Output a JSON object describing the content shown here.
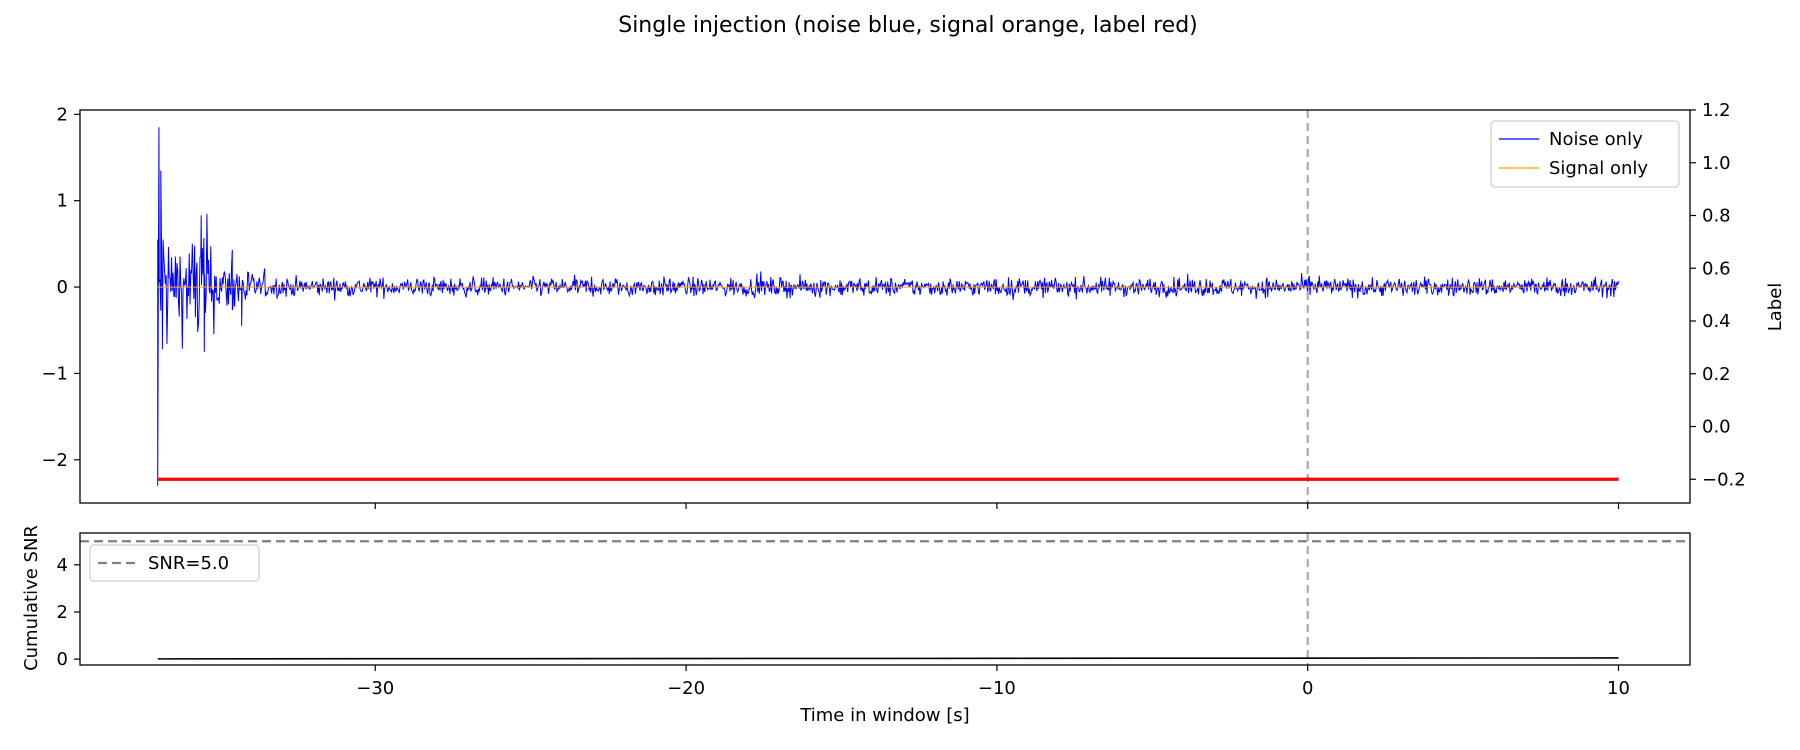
{
  "figure": {
    "title": "Single injection (noise blue, signal orange, label red)"
  },
  "chart_data": [
    {
      "type": "line",
      "panel": "top",
      "title": "",
      "xlabel": "",
      "ylabel": "",
      "y2label": "Label",
      "xlim": [
        -39.5,
        12.3
      ],
      "ylim": [
        -2.5,
        2.05
      ],
      "y2lim": [
        -0.29,
        1.2
      ],
      "x_ticks": [
        -30,
        -20,
        -10,
        0,
        10
      ],
      "y_ticks": [
        -2,
        -1,
        0,
        1,
        2
      ],
      "y_tick_labels": [
        "−2",
        "−1",
        "0",
        "1",
        "2"
      ],
      "y2_ticks": [
        -0.2,
        0.0,
        0.2,
        0.4,
        0.6,
        0.8,
        1.0,
        1.2
      ],
      "y2_tick_labels": [
        "−0.2",
        "0.0",
        "0.2",
        "0.4",
        "0.6",
        "0.8",
        "1.0",
        "1.2"
      ],
      "grid": false,
      "legend": {
        "placement": "top-right"
      },
      "vline_x": 0,
      "series": [
        {
          "name": "Noise only",
          "color": "#0000ff",
          "kind": "noisy-trace",
          "x_start": -37.0,
          "x_end": 10.0,
          "n_points": 1900,
          "peak_points": [
            [
              -37.0,
              -2.3
            ],
            [
              -36.96,
              1.85
            ],
            [
              -36.9,
              1.35
            ],
            [
              -36.85,
              -0.72
            ],
            [
              -35.6,
              0.83
            ],
            [
              -35.5,
              -0.75
            ],
            [
              -34.6,
              0.43
            ],
            [
              -34.3,
              -0.45
            ]
          ],
          "steady_amplitude": 0.07
        },
        {
          "name": "Signal only",
          "color": "#ffa500",
          "kind": "flat",
          "x_start": -37.0,
          "x_end": 10.0,
          "y": 0.0
        },
        {
          "name": "",
          "color": "#ff0000",
          "axis": "y2",
          "kind": "flat",
          "x_start": -37.0,
          "x_end": 10.0,
          "y": -0.2
        }
      ]
    },
    {
      "type": "line",
      "panel": "bottom",
      "title": "",
      "xlabel": "Time in window [s]",
      "ylabel": "Cumulative SNR",
      "xlim": [
        -39.5,
        12.3
      ],
      "ylim": [
        -0.25,
        5.35
      ],
      "x_ticks": [
        -30,
        -20,
        -10,
        0,
        10
      ],
      "x_tick_labels": [
        "−30",
        "−20",
        "−10",
        "0",
        "10"
      ],
      "y_ticks": [
        0,
        2,
        4
      ],
      "y_tick_labels": [
        "0",
        "2",
        "4"
      ],
      "grid": false,
      "legend": {
        "placement": "top-left"
      },
      "vline_x": 0,
      "hline": {
        "name": "SNR=5.0",
        "y": 5.0,
        "color": "#808080"
      },
      "series": [
        {
          "name": "",
          "color": "#000000",
          "kind": "flat",
          "x_start": -37.0,
          "x_end": 10.0,
          "y_start": 0.01,
          "y_end": 0.05
        }
      ]
    }
  ]
}
